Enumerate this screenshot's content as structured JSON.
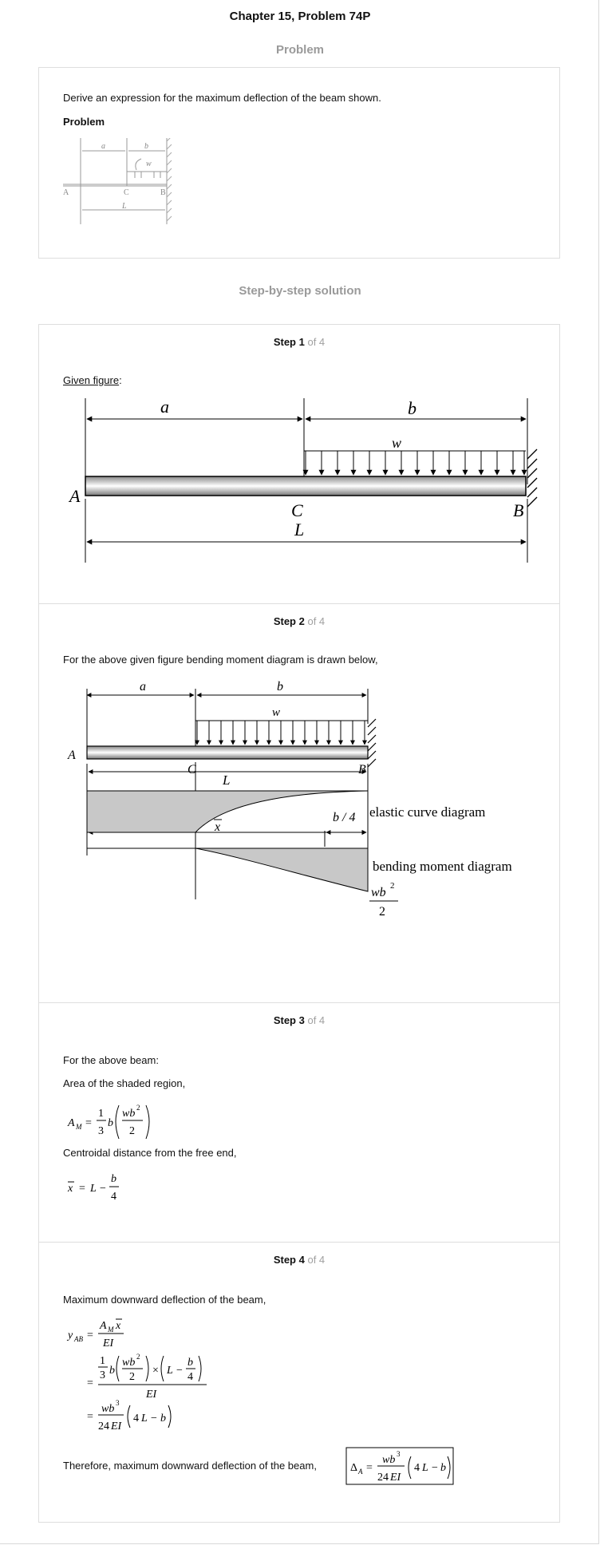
{
  "header": {
    "title": "Chapter 15, Problem 74P"
  },
  "problem_section": {
    "title": "Problem",
    "statement": "Derive an expression for the maximum deflection of the beam shown.",
    "label": "Problem"
  },
  "solution_section": {
    "title": "Step-by-step solution"
  },
  "figure_labels": {
    "a": "a",
    "b": "b",
    "w": "w",
    "A": "A",
    "B": "B",
    "C": "C",
    "L": "L",
    "xbar": "x",
    "b4": "b / 4",
    "elastic": "elastic curve diagram",
    "bending": "bending moment diagram"
  },
  "steps": [
    {
      "label": "Step 1",
      "of": "of 4",
      "given": "Given figure",
      "colon": ":"
    },
    {
      "label": "Step 2",
      "of": "of 4",
      "text": "For the above given figure bending moment diagram is drawn below,"
    },
    {
      "label": "Step 3",
      "of": "of 4",
      "line1": "For the above beam:",
      "line2": "Area of the shaded region,",
      "line3": "Centroidal distance from the free end,"
    },
    {
      "label": "Step 4",
      "of": "of 4",
      "line1": "Maximum downward deflection of the beam,",
      "line2": "Therefore, maximum downward deflection of the beam,"
    }
  ]
}
